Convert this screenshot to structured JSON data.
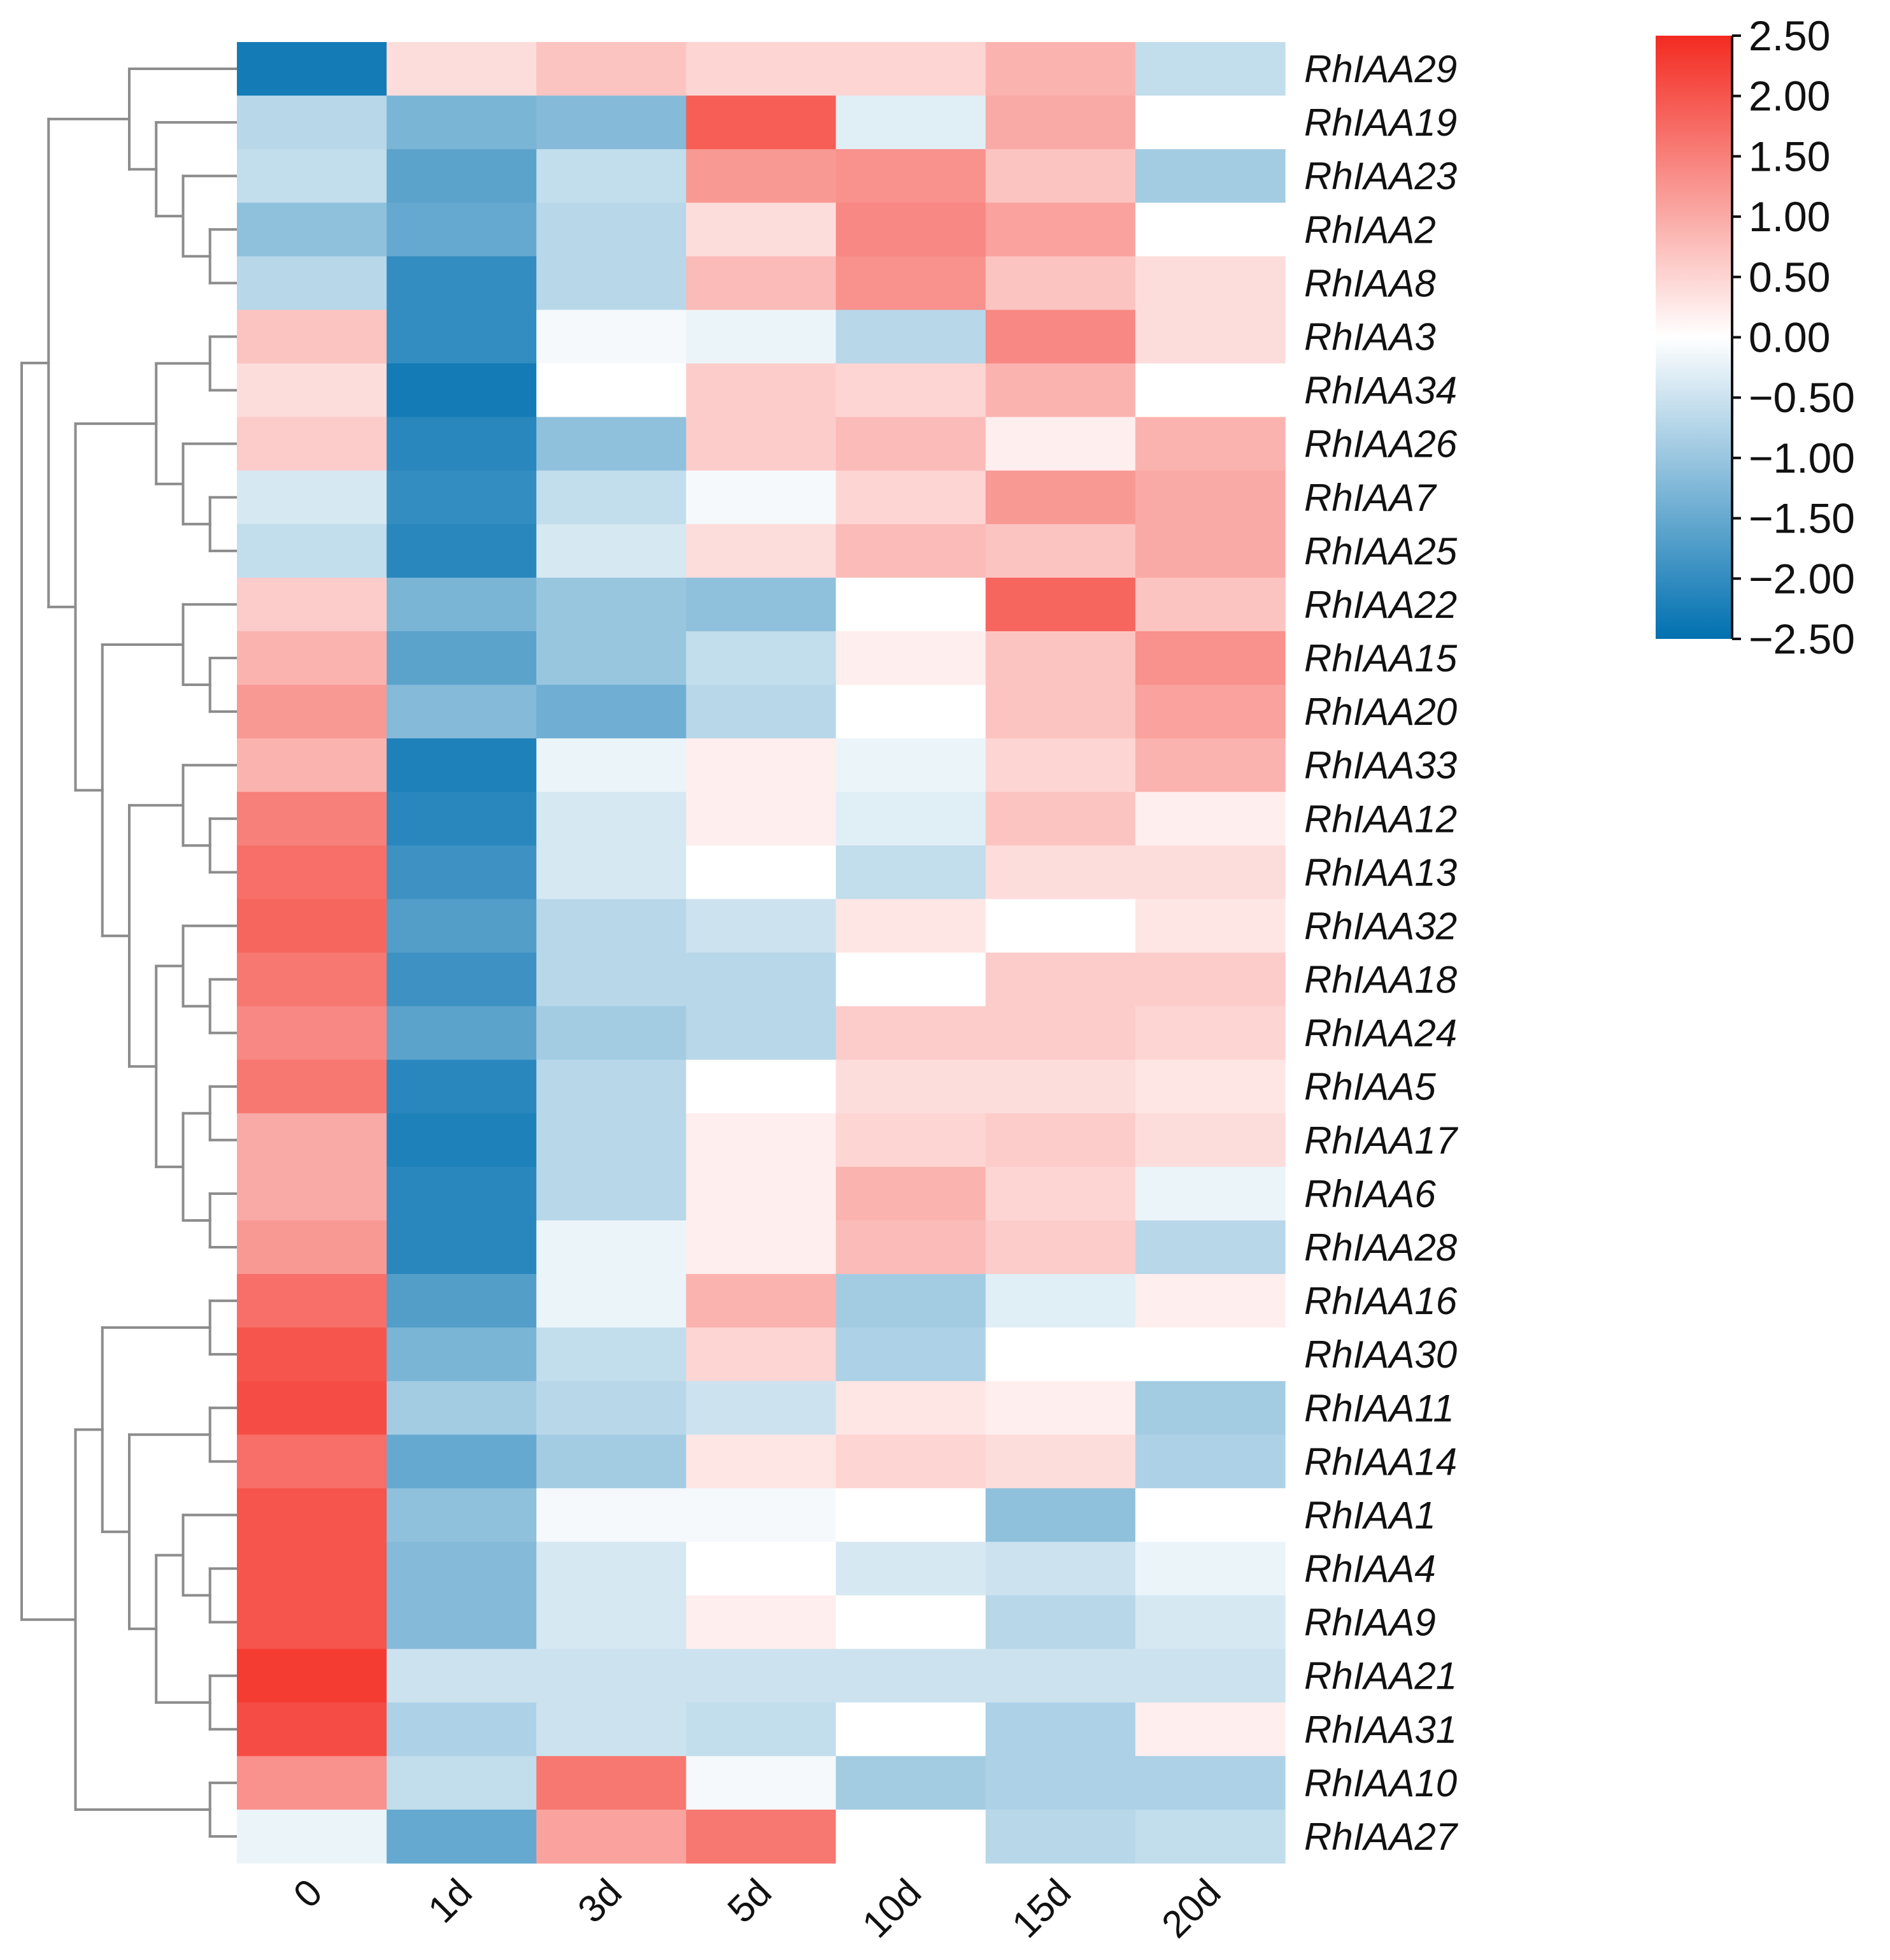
{
  "chart_data": {
    "type": "heatmap",
    "title": "",
    "columns": [
      "0",
      "1d",
      "3d",
      "5d",
      "10d",
      "15d",
      "20d"
    ],
    "rows": [
      {
        "gene": "RhIAA29",
        "values": [
          -2.3,
          0.4,
          0.7,
          0.5,
          0.5,
          0.9,
          -0.6
        ]
      },
      {
        "gene": "RhIAA19",
        "values": [
          -0.7,
          -1.3,
          -1.2,
          1.9,
          -0.3,
          1.0,
          0.0
        ]
      },
      {
        "gene": "RhIAA23",
        "values": [
          -0.6,
          -1.6,
          -0.6,
          1.2,
          1.3,
          0.7,
          -0.9
        ]
      },
      {
        "gene": "RhIAA2",
        "values": [
          -1.1,
          -1.5,
          -0.7,
          0.4,
          1.4,
          1.1,
          0.0
        ]
      },
      {
        "gene": "RhIAA8",
        "values": [
          -0.7,
          -2.0,
          -0.7,
          0.8,
          1.3,
          0.7,
          0.4
        ]
      },
      {
        "gene": "RhIAA3",
        "values": [
          0.7,
          -2.0,
          -0.1,
          -0.2,
          -0.7,
          1.4,
          0.4
        ]
      },
      {
        "gene": "RhIAA34",
        "values": [
          0.4,
          -2.3,
          0.0,
          0.6,
          0.5,
          0.9,
          0.0
        ]
      },
      {
        "gene": "RhIAA26",
        "values": [
          0.6,
          -2.1,
          -1.1,
          0.6,
          0.8,
          0.2,
          0.9
        ]
      },
      {
        "gene": "RhIAA7",
        "values": [
          -0.4,
          -2.0,
          -0.6,
          -0.1,
          0.5,
          1.2,
          1.0
        ]
      },
      {
        "gene": "RhIAA25",
        "values": [
          -0.6,
          -2.1,
          -0.4,
          0.4,
          0.8,
          0.7,
          1.0
        ]
      },
      {
        "gene": "RhIAA22",
        "values": [
          0.6,
          -1.3,
          -1.0,
          -1.1,
          0.0,
          1.8,
          0.7
        ]
      },
      {
        "gene": "RhIAA15",
        "values": [
          0.9,
          -1.6,
          -1.0,
          -0.6,
          0.2,
          0.7,
          1.3
        ]
      },
      {
        "gene": "RhIAA20",
        "values": [
          1.2,
          -1.2,
          -1.4,
          -0.7,
          0.0,
          0.7,
          1.1
        ]
      },
      {
        "gene": "RhIAA33",
        "values": [
          0.9,
          -2.2,
          -0.2,
          0.2,
          -0.2,
          0.5,
          0.9
        ]
      },
      {
        "gene": "RhIAA12",
        "values": [
          1.5,
          -2.1,
          -0.4,
          0.2,
          -0.3,
          0.7,
          0.2
        ]
      },
      {
        "gene": "RhIAA13",
        "values": [
          1.7,
          -1.9,
          -0.4,
          0.0,
          -0.6,
          0.4,
          0.4
        ]
      },
      {
        "gene": "RhIAA32",
        "values": [
          1.8,
          -1.7,
          -0.7,
          -0.5,
          0.3,
          0.0,
          0.3
        ]
      },
      {
        "gene": "RhIAA18",
        "values": [
          1.6,
          -1.9,
          -0.7,
          -0.7,
          0.0,
          0.6,
          0.6
        ]
      },
      {
        "gene": "RhIAA24",
        "values": [
          1.4,
          -1.6,
          -0.9,
          -0.7,
          0.6,
          0.6,
          0.5
        ]
      },
      {
        "gene": "RhIAA5",
        "values": [
          1.6,
          -2.1,
          -0.7,
          0.0,
          0.4,
          0.4,
          0.3
        ]
      },
      {
        "gene": "RhIAA17",
        "values": [
          1.0,
          -2.2,
          -0.7,
          0.2,
          0.5,
          0.6,
          0.4
        ]
      },
      {
        "gene": "RhIAA6",
        "values": [
          1.0,
          -2.1,
          -0.7,
          0.2,
          0.9,
          0.5,
          -0.2
        ]
      },
      {
        "gene": "RhIAA28",
        "values": [
          1.2,
          -2.1,
          -0.2,
          0.2,
          0.8,
          0.6,
          -0.7
        ]
      },
      {
        "gene": "RhIAA16",
        "values": [
          1.7,
          -1.7,
          -0.2,
          0.9,
          -0.9,
          -0.3,
          0.2
        ]
      },
      {
        "gene": "RhIAA30",
        "values": [
          2.0,
          -1.3,
          -0.6,
          0.5,
          -0.8,
          0.0,
          0.0
        ]
      },
      {
        "gene": "RhIAA11",
        "values": [
          2.1,
          -0.9,
          -0.7,
          -0.5,
          0.3,
          0.2,
          -0.9
        ]
      },
      {
        "gene": "RhIAA14",
        "values": [
          1.7,
          -1.5,
          -0.9,
          0.3,
          0.5,
          0.4,
          -0.8
        ]
      },
      {
        "gene": "RhIAA1",
        "values": [
          2.0,
          -1.1,
          -0.1,
          -0.1,
          0.0,
          -1.1,
          0.0
        ]
      },
      {
        "gene": "RhIAA4",
        "values": [
          2.0,
          -1.2,
          -0.4,
          0.0,
          -0.4,
          -0.5,
          -0.2
        ]
      },
      {
        "gene": "RhIAA9",
        "values": [
          2.0,
          -1.2,
          -0.4,
          0.2,
          0.0,
          -0.7,
          -0.4
        ]
      },
      {
        "gene": "RhIAA21",
        "values": [
          2.3,
          -0.5,
          -0.5,
          -0.5,
          -0.5,
          -0.5,
          -0.5
        ]
      },
      {
        "gene": "RhIAA31",
        "values": [
          2.1,
          -0.8,
          -0.5,
          -0.6,
          0.0,
          -0.8,
          0.2
        ]
      },
      {
        "gene": "RhIAA10",
        "values": [
          1.3,
          -0.6,
          1.6,
          -0.1,
          -0.9,
          -0.8,
          -0.8
        ]
      },
      {
        "gene": "RhIAA27",
        "values": [
          -0.2,
          -1.5,
          1.1,
          1.6,
          0.0,
          -0.7,
          -0.6
        ]
      }
    ],
    "color_scale": {
      "min": -2.5,
      "max": 2.5,
      "low_color": "#0070b0",
      "mid_color": "#ffffff",
      "high_color": "#f32b21",
      "ticks": [
        "2.50",
        "2.00",
        "1.50",
        "1.00",
        "0.50",
        "0.00",
        "−0.50",
        "−1.00",
        "−1.50",
        "−2.00",
        "−2.50"
      ]
    },
    "dendrogram_color": "#8c8c8c",
    "row_dendrogram": {
      "l": {
        "l": {
          "l": 0,
          "r": {
            "l": 1,
            "r": {
              "l": 2,
              "r": {
                "l": 3,
                "r": 4
              }
            }
          }
        },
        "r": {
          "l": {
            "l": {
              "l": 5,
              "r": 6
            },
            "r": {
              "l": 7,
              "r": {
                "l": 8,
                "r": 9
              }
            }
          },
          "r": {
            "l": {
              "l": 10,
              "r": {
                "l": 11,
                "r": 12
              }
            },
            "r": {
              "l": {
                "l": 13,
                "r": {
                  "l": 14,
                  "r": 15
                }
              },
              "r": {
                "l": {
                  "l": 16,
                  "r": {
                    "l": 17,
                    "r": 18
                  }
                },
                "r": {
                  "l": {
                    "l": 19,
                    "r": 20
                  },
                  "r": {
                    "l": 21,
                    "r": 22
                  }
                }
              }
            }
          }
        }
      },
      "r": {
        "l": {
          "l": {
            "l": 23,
            "r": 24
          },
          "r": {
            "l": {
              "l": 25,
              "r": 26
            },
            "r": {
              "l": {
                "l": 27,
                "r": {
                  "l": 28,
                  "r": 29
                }
              },
              "r": {
                "l": 30,
                "r": 31
              }
            }
          }
        },
        "r": {
          "l": 32,
          "r": 33
        }
      }
    }
  }
}
